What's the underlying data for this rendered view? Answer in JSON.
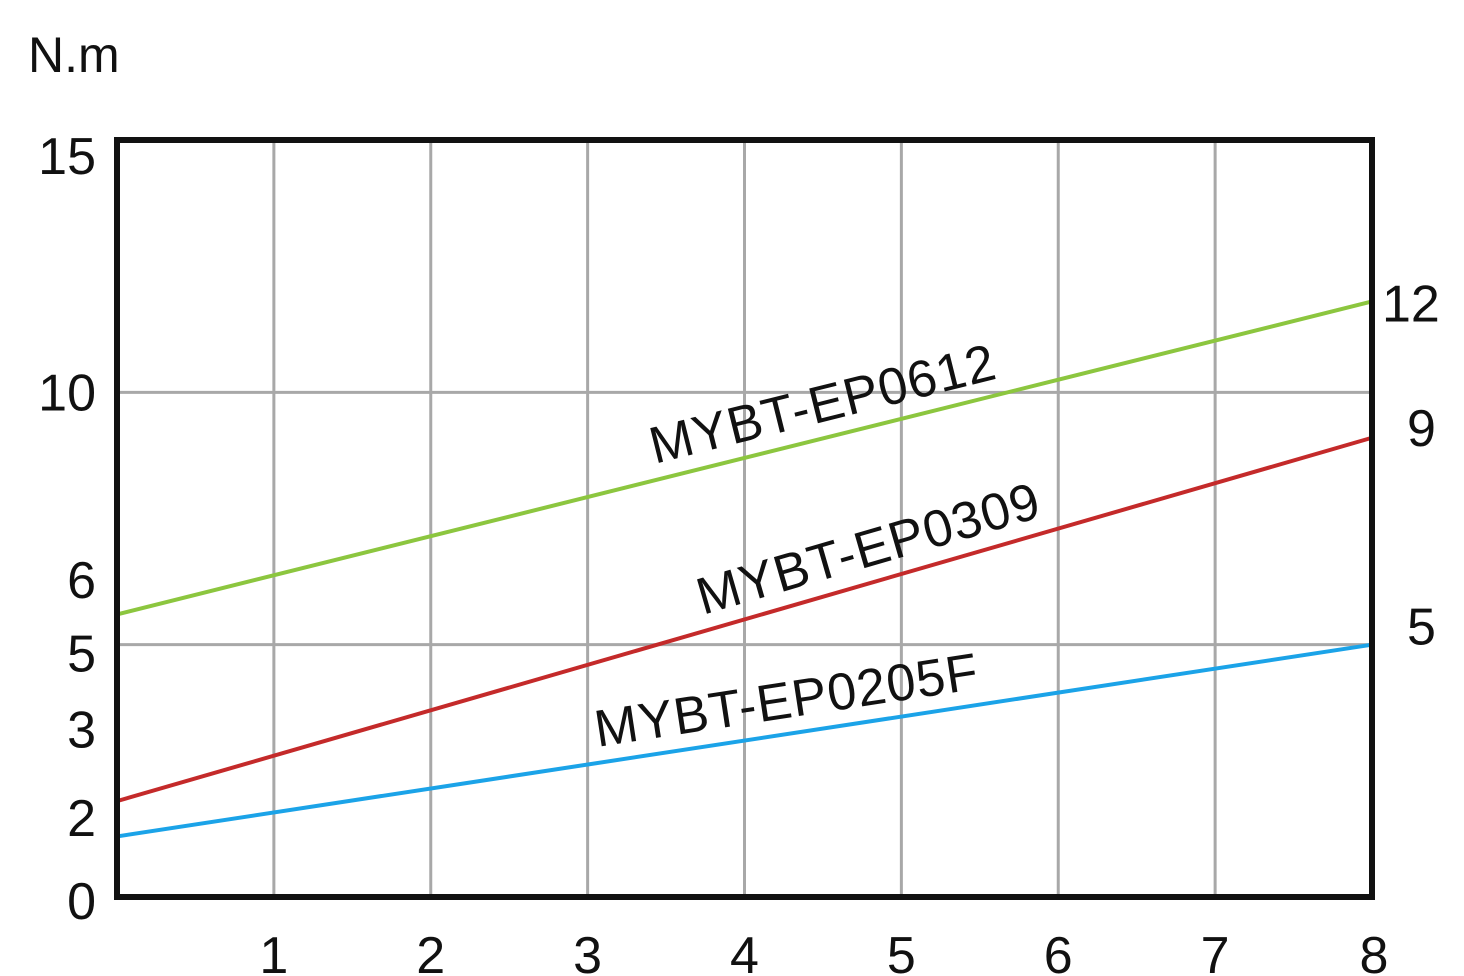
{
  "chart_data": {
    "type": "line",
    "ylabel": "N.m",
    "xlabel": "",
    "xlim": [
      0,
      8
    ],
    "ylim": [
      0,
      15
    ],
    "x_ticks": [
      "1",
      "2",
      "3",
      "4",
      "5",
      "6",
      "7",
      "8"
    ],
    "y_ticks": [
      "0",
      "2",
      "3",
      "5",
      "6",
      "10",
      "15"
    ],
    "grid": true,
    "series": [
      {
        "name": "MYBT-EP0612",
        "color": "#8cc63f",
        "x": [
          0,
          8
        ],
        "y": [
          5.6,
          11.8
        ],
        "end_label": "12"
      },
      {
        "name": "MYBT-EP0309",
        "color": "#c42a2a",
        "x": [
          0,
          8
        ],
        "y": [
          1.9,
          9.1
        ],
        "end_label": "9"
      },
      {
        "name": "MYBT-EP0205F",
        "color": "#1ba3e8",
        "x": [
          0,
          8
        ],
        "y": [
          1.2,
          5.0
        ],
        "end_label": "5"
      }
    ]
  }
}
